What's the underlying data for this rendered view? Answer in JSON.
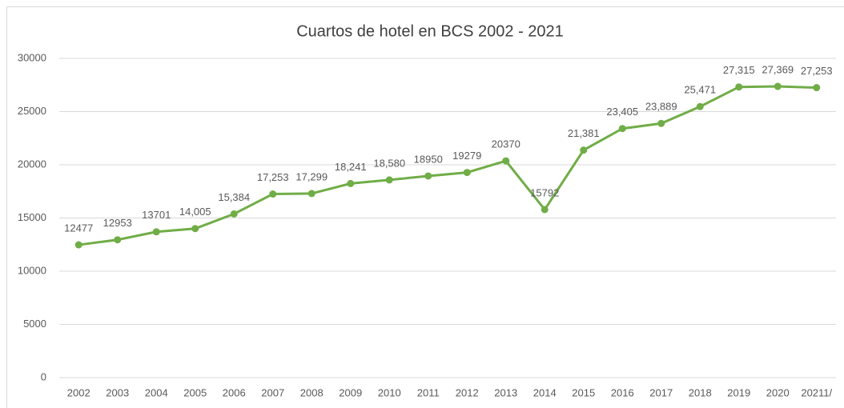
{
  "chart_data": {
    "type": "line",
    "title": "Cuartos de hotel en BCS 2002 - 2021",
    "categories": [
      "2002",
      "2003",
      "2004",
      "2005",
      "2006",
      "2007",
      "2008",
      "2009",
      "2010",
      "2011",
      "2012",
      "2013",
      "2014",
      "2015",
      "2016",
      "2017",
      "2018",
      "2019",
      "2020",
      "20211/"
    ],
    "series": [
      {
        "name": "Cuartos de hotel",
        "color": "#70ad47",
        "values": [
          12477,
          12953,
          13701,
          14005,
          15384,
          17253,
          17299,
          18241,
          18580,
          18950,
          19279,
          20370,
          15792,
          21381,
          23405,
          23889,
          25471,
          27315,
          27369,
          27253
        ],
        "value_labels": [
          "12477",
          "12953",
          "13701",
          "14,005",
          "15,384",
          "17,253",
          "17,299",
          "18,241",
          "18,580",
          "18950",
          "19279",
          "20370",
          "15792",
          "21,381",
          "23,405",
          "23,889",
          "25,471",
          "27,315",
          "27,369",
          "27,253"
        ]
      }
    ],
    "ylim": [
      0,
      30000
    ],
    "yticks": [
      0,
      5000,
      10000,
      15000,
      20000,
      25000,
      30000
    ],
    "grid": true
  }
}
